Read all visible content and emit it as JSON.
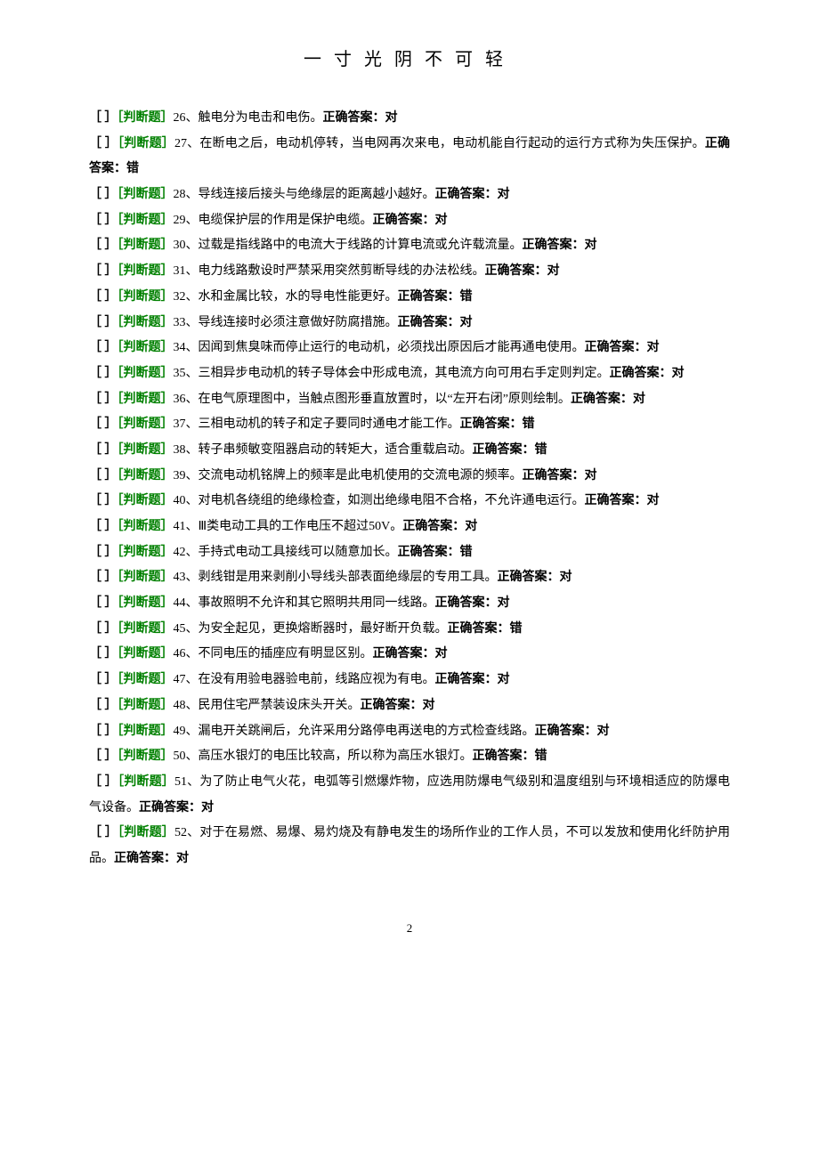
{
  "header": {
    "title": "一寸光阴不可轻"
  },
  "styles": {
    "bracket_color": "#000000",
    "tag_color": "#008000",
    "text_color": "#000000",
    "answer_color": "#000000",
    "bracket_text": "［ ］",
    "tag_text": "［判断题］",
    "answer_prefix": "正确答案："
  },
  "questions": [
    {
      "num": "26",
      "text": "触电分为电击和电伤。",
      "answer": "对",
      "inline": true
    },
    {
      "num": "27",
      "text": "在断电之后，电动机停转，当电网再次来电，电动机能自行起动的运行方式称为失压保护。",
      "answer": "错",
      "inline": false
    },
    {
      "num": "28",
      "text": "导线连接后接头与绝缘层的距离越小越好。",
      "answer": "对",
      "inline": true
    },
    {
      "num": "29",
      "text": "电缆保护层的作用是保护电缆。",
      "answer": "对",
      "inline": true
    },
    {
      "num": "30",
      "text": "过载是指线路中的电流大于线路的计算电流或允许载流量。",
      "answer": "对",
      "inline": false
    },
    {
      "num": "31",
      "text": "电力线路敷设时严禁采用突然剪断导线的办法松线。",
      "answer": "对",
      "inline": true
    },
    {
      "num": "32",
      "text": "水和金属比较，水的导电性能更好。",
      "answer": "错",
      "inline": true
    },
    {
      "num": "33",
      "text": "导线连接时必须注意做好防腐措施。",
      "answer": "对",
      "inline": true
    },
    {
      "num": "34",
      "text": "因闻到焦臭味而停止运行的电动机，必须找出原因后才能再通电使用。",
      "answer": "对",
      "inline": false
    },
    {
      "num": "35",
      "text": "三相异步电动机的转子导体会中形成电流，其电流方向可用右手定则判定。",
      "answer": "对",
      "inline": false
    },
    {
      "num": "36",
      "text": "在电气原理图中，当触点图形垂直放置时，以“左开右闭”原则绘制。",
      "answer": "对",
      "inline": false
    },
    {
      "num": "37",
      "text": "三相电动机的转子和定子要同时通电才能工作。",
      "answer": "错",
      "inline": true
    },
    {
      "num": "38",
      "text": "转子串频敏变阻器启动的转矩大，适合重载启动。",
      "answer": "错",
      "inline": true
    },
    {
      "num": "39",
      "text": "交流电动机铭牌上的频率是此电机使用的交流电源的频率。",
      "answer": "对",
      "inline": false
    },
    {
      "num": "40",
      "text": "对电机各绕组的绝缘检查，如测出绝缘电阻不合格，不允许通电运行。",
      "answer": "对",
      "inline": false
    },
    {
      "num": "41",
      "text": "Ⅲ类电动工具的工作电压不超过50V。",
      "answer": "对",
      "inline": true
    },
    {
      "num": "42",
      "text": "手持式电动工具接线可以随意加长。",
      "answer": "错",
      "inline": true
    },
    {
      "num": "43",
      "text": "剥线钳是用来剥削小导线头部表面绝缘层的专用工具。",
      "answer": "对",
      "inline": true
    },
    {
      "num": "44",
      "text": "事故照明不允许和其它照明共用同一线路。",
      "answer": "对",
      "inline": true
    },
    {
      "num": "45",
      "text": "为安全起见，更换熔断器时，最好断开负载。",
      "answer": "错",
      "inline": true
    },
    {
      "num": "46",
      "text": "不同电压的插座应有明显区别。",
      "answer": "对",
      "inline": true
    },
    {
      "num": "47",
      "text": "在没有用验电器验电前，线路应视为有电。",
      "answer": "对",
      "inline": true
    },
    {
      "num": "48",
      "text": "民用住宅严禁装设床头开关。",
      "answer": "对",
      "inline": true
    },
    {
      "num": "49",
      "text": "漏电开关跳闸后，允许采用分路停电再送电的方式检查线路。",
      "answer": "对",
      "inline": false
    },
    {
      "num": "50",
      "text": "高压水银灯的电压比较高，所以称为高压水银灯。",
      "answer": "错",
      "inline": true
    },
    {
      "num": "51",
      "text": "为了防止电气火花，电弧等引燃爆炸物，应选用防爆电气级别和温度组别与环境相适应的防爆电气设备。",
      "answer": "对",
      "inline": false
    },
    {
      "num": "52",
      "text": "对于在易燃、易爆、易灼烧及有静电发生的场所作业的工作人员，不可以发放和使用化纤防护用品。",
      "answer": "对",
      "inline": false
    }
  ],
  "footer": {
    "page_number": "2"
  }
}
